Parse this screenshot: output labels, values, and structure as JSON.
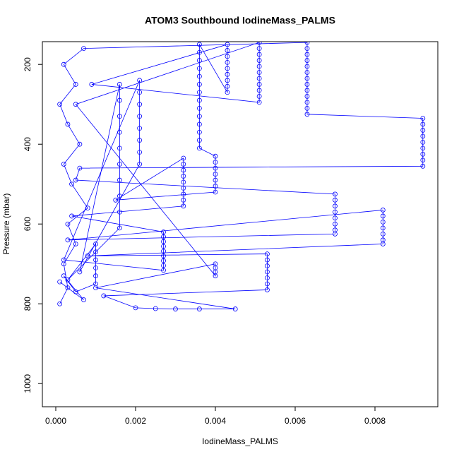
{
  "chart_data": {
    "type": "scatter",
    "lines": true,
    "color": "#0000ff",
    "title": "ATOM3 Southbound IodineMass_PALMS",
    "x_label": "IodineMass_PALMS",
    "y_label": "Pressure (mbar)",
    "xlim": [
      -0.000336,
      0.009575
    ],
    "ylim": [
      1058,
      143
    ],
    "xticks": [
      {
        "value": 0,
        "label": "0.000"
      },
      {
        "value": 0.002,
        "label": "0.002"
      },
      {
        "value": 0.004,
        "label": "0.004"
      },
      {
        "value": 0.006,
        "label": "0.006"
      },
      {
        "value": 0.008,
        "label": "0.008"
      }
    ],
    "yticks": [
      200,
      400,
      600,
      800,
      1000
    ],
    "x": [
      0.0001,
      0.0003,
      0.0002,
      0.0005,
      0.0003,
      0.0008,
      0.0004,
      0.0002,
      0.0006,
      0.0003,
      0.0001,
      0.0005,
      0.0002,
      0.0007,
      0.0063,
      0.0063,
      0.0063,
      0.0063,
      0.0063,
      0.0063,
      0.0063,
      0.0063,
      0.0063,
      0.0063,
      0.0063,
      0.0063,
      0.0063,
      0.0092,
      0.0092,
      0.0092,
      0.0092,
      0.0092,
      0.0092,
      0.0092,
      0.0092,
      0.0092,
      0.0006,
      0.0005,
      0.007,
      0.007,
      0.007,
      0.007,
      0.007,
      0.007,
      0.007,
      0.007,
      0.0003,
      0.0082,
      0.0082,
      0.0082,
      0.0082,
      0.0082,
      0.0082,
      0.0082,
      0.0008,
      0.0053,
      0.0053,
      0.0053,
      0.0053,
      0.0053,
      0.0053,
      0.0053,
      0.0012,
      0.002,
      0.0025,
      0.003,
      0.0036,
      0.0045,
      0.001,
      0.004,
      0.004,
      0.004,
      0.004,
      0.0005,
      0.0051,
      0.0051,
      0.0051,
      0.0051,
      0.0051,
      0.0051,
      0.0051,
      0.0051,
      0.0051,
      0.0051,
      0.0051,
      0.0009,
      0.0043,
      0.0043,
      0.0043,
      0.0043,
      0.0043,
      0.0043,
      0.0043,
      0.0043,
      0.0043,
      0.0036,
      0.0036,
      0.0036,
      0.0036,
      0.0036,
      0.0036,
      0.0036,
      0.0036,
      0.0036,
      0.0036,
      0.0036,
      0.0036,
      0.0036,
      0.0036,
      0.004,
      0.004,
      0.004,
      0.004,
      0.004,
      0.004,
      0.004,
      0.0015,
      0.0032,
      0.0032,
      0.0032,
      0.0032,
      0.0032,
      0.0032,
      0.0032,
      0.0032,
      0.0032,
      0.0004,
      0.0027,
      0.0027,
      0.0027,
      0.0027,
      0.0027,
      0.0027,
      0.0027,
      0.0027,
      0.0027,
      0.0002,
      0.0021,
      0.0021,
      0.0021,
      0.0021,
      0.0021,
      0.0021,
      0.0021,
      0.0021,
      0.0006,
      0.0016,
      0.0016,
      0.0016,
      0.0016,
      0.0016,
      0.0016,
      0.0016,
      0.0016,
      0.0016,
      0.0016,
      0.0003,
      0.001,
      0.001,
      0.001,
      0.001,
      0.001,
      0.001,
      0.0005,
      0.0002,
      0.0007,
      0.0001
    ],
    "y": [
      800,
      760,
      700,
      650,
      600,
      560,
      500,
      450,
      400,
      350,
      300,
      250,
      200,
      160,
      145,
      160,
      175,
      190,
      205,
      220,
      235,
      250,
      265,
      280,
      295,
      310,
      325,
      335,
      350,
      365,
      380,
      395,
      410,
      425,
      440,
      455,
      460,
      490,
      525,
      540,
      555,
      570,
      585,
      600,
      615,
      625,
      640,
      565,
      580,
      595,
      610,
      625,
      640,
      650,
      680,
      675,
      690,
      705,
      720,
      735,
      750,
      765,
      780,
      810,
      812,
      813,
      813,
      813,
      760,
      700,
      710,
      720,
      730,
      300,
      145,
      160,
      175,
      190,
      205,
      220,
      235,
      250,
      265,
      280,
      295,
      250,
      150,
      165,
      180,
      195,
      210,
      225,
      240,
      255,
      270,
      150,
      170,
      190,
      210,
      230,
      250,
      270,
      290,
      310,
      330,
      350,
      370,
      390,
      410,
      430,
      445,
      460,
      475,
      490,
      505,
      520,
      540,
      435,
      450,
      465,
      480,
      495,
      510,
      525,
      540,
      555,
      580,
      620,
      632,
      644,
      656,
      668,
      680,
      692,
      704,
      716,
      690,
      240,
      270,
      300,
      330,
      360,
      390,
      420,
      450,
      720,
      250,
      290,
      330,
      370,
      410,
      450,
      490,
      530,
      570,
      610,
      740,
      650,
      670,
      690,
      710,
      730,
      750,
      770,
      730,
      790,
      745
    ]
  }
}
